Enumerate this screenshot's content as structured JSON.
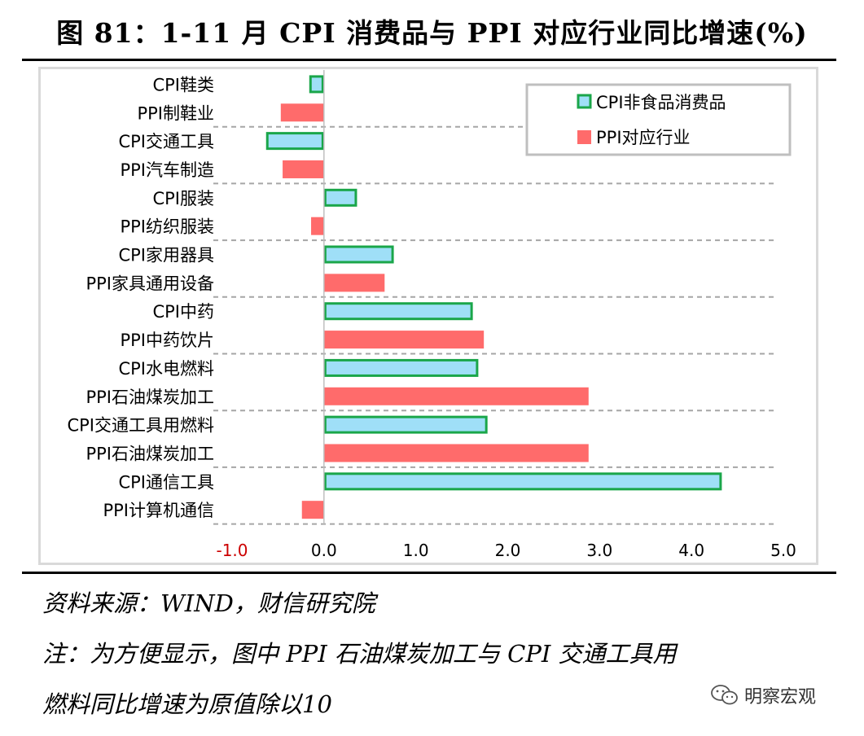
{
  "title": "图 81：1-11 月 CPI 消费品与 PPI 对应行业同比增速(%)",
  "source": "资料来源：WIND，财信研究院",
  "note_line1": "注：为方便显示，图中 PPI 石油煤炭加工与 CPI 交通工具用",
  "note_line2": "燃料同比增速为原值除以10",
  "watermark": "明察宏观",
  "watermark_icon": "wechat-icon",
  "colors": {
    "cpi_fill": "#9fdff7",
    "cpi_border": "#1aa64a",
    "ppi_fill": "#ff6b6b",
    "negative_tick": "#cc0000",
    "grid": "#a6a6a6"
  },
  "chart_data": {
    "type": "bar",
    "orientation": "horizontal",
    "categories": [
      "CPI鞋类",
      "PPI制鞋业",
      "CPI交通工具",
      "PPI汽车制造",
      "CPI服装",
      "PPI纺织服装",
      "CPI家用器具",
      "PPI家具通用设备",
      "CPI中药",
      "PPI中药饮片",
      "CPI水电燃料",
      "PPI石油煤炭加工",
      "CPI交通工具用燃料",
      "PPI石油煤炭加工",
      "CPI通信工具",
      "PPI计算机通信"
    ],
    "series": [
      {
        "name": "CPI非食品消费品",
        "values": [
          -0.16,
          null,
          -0.63,
          null,
          0.36,
          null,
          0.76,
          null,
          1.62,
          null,
          1.68,
          null,
          1.78,
          null,
          4.33,
          null
        ]
      },
      {
        "name": "PPI对应行业",
        "values": [
          null,
          -0.47,
          null,
          -0.45,
          null,
          -0.14,
          null,
          0.66,
          null,
          1.74,
          null,
          2.88,
          null,
          2.88,
          null,
          -0.24
        ]
      }
    ],
    "xlim": [
      -1.0,
      5.0
    ],
    "xticks": [
      "-1.0",
      "0.0",
      "1.0",
      "2.0",
      "3.0",
      "4.0",
      "5.0"
    ],
    "grid": "dashed separators between category pairs",
    "legend_position": "top-right"
  }
}
